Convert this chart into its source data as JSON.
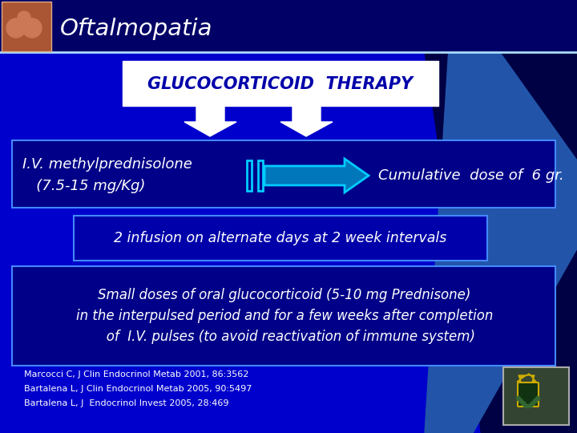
{
  "title": "Oftalmopatia",
  "bg_color": "#0000CC",
  "header_bg": "#000088",
  "glucocorticoid_title": "GLUCOCORTICOID  THERAPY",
  "box1_line1": "I.V. methylprednisolone",
  "box1_line2": "   (7.5-15 mg/Kg)",
  "box1_right": "Cumulative  dose of  6 gr.",
  "box2_text": "2 infusion on alternate days at 2 week intervals",
  "box3_line1": "Small doses of oral glucocorticoid (5-10 mg Prednisone)",
  "box3_line2": "in the interpulsed period and for a few weeks after completion",
  "box3_line3": "   of  I.V. pulses (to avoid reactivation of immune system)",
  "ref1": "Marcocci C, J Clin Endocrinol Metab 2001, 86:3562",
  "ref2": "Bartalena L, J Clin Endocrinol Metab 2005, 90:5497",
  "ref3": "Bartalena L, J  Endocrinol Invest 2005, 28:469",
  "white": "#FFFFFF",
  "dark_blue": "#000080",
  "mid_blue": "#0000FF",
  "box_border": "#3366FF",
  "arrow_color": "#00BBFF",
  "title_blue": "#0000CC",
  "bg_dark": "#000044",
  "stripe_blue": "#3366BB"
}
